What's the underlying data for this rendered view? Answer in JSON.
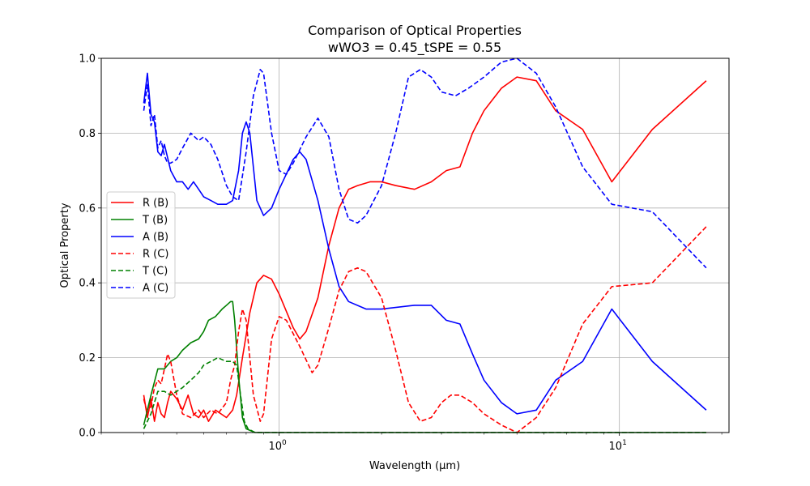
{
  "chart_data": {
    "type": "line",
    "title": "Comparison of Optical Properties",
    "subtitle": "wWO3 = 0.45_tSPE = 0.55",
    "xlabel": "Wavelength (μm)",
    "ylabel": "Optical Property",
    "xscale": "log",
    "xlim": [
      0.3,
      21
    ],
    "ylim": [
      0,
      1
    ],
    "grid": true,
    "legend_position": "center-left",
    "x_tick_labels": [
      "10^0",
      "10^1"
    ],
    "y_tick_labels": [
      "0.0",
      "0.2",
      "0.4",
      "0.6",
      "0.8",
      "1.0"
    ],
    "series": [
      {
        "name": "R (B)",
        "color": "#ff0000",
        "dash": "solid",
        "points": [
          [
            0.4,
            0.1
          ],
          [
            0.41,
            0.04
          ],
          [
            0.42,
            0.09
          ],
          [
            0.43,
            0.03
          ],
          [
            0.44,
            0.08
          ],
          [
            0.45,
            0.05
          ],
          [
            0.46,
            0.04
          ],
          [
            0.47,
            0.08
          ],
          [
            0.48,
            0.11
          ],
          [
            0.5,
            0.09
          ],
          [
            0.52,
            0.06
          ],
          [
            0.54,
            0.1
          ],
          [
            0.56,
            0.05
          ],
          [
            0.58,
            0.04
          ],
          [
            0.6,
            0.06
          ],
          [
            0.62,
            0.03
          ],
          [
            0.65,
            0.06
          ],
          [
            0.7,
            0.04
          ],
          [
            0.73,
            0.06
          ],
          [
            0.75,
            0.1
          ],
          [
            0.78,
            0.2
          ],
          [
            0.82,
            0.32
          ],
          [
            0.86,
            0.4
          ],
          [
            0.9,
            0.42
          ],
          [
            0.95,
            0.41
          ],
          [
            1.0,
            0.37
          ],
          [
            1.1,
            0.28
          ],
          [
            1.15,
            0.25
          ],
          [
            1.2,
            0.27
          ],
          [
            1.3,
            0.36
          ],
          [
            1.4,
            0.5
          ],
          [
            1.5,
            0.6
          ],
          [
            1.6,
            0.65
          ],
          [
            1.7,
            0.66
          ],
          [
            1.85,
            0.67
          ],
          [
            2.0,
            0.67
          ],
          [
            2.2,
            0.66
          ],
          [
            2.5,
            0.65
          ],
          [
            2.8,
            0.67
          ],
          [
            3.1,
            0.7
          ],
          [
            3.4,
            0.71
          ],
          [
            3.7,
            0.8
          ],
          [
            4.0,
            0.86
          ],
          [
            4.5,
            0.92
          ],
          [
            5.0,
            0.95
          ],
          [
            5.7,
            0.94
          ],
          [
            6.5,
            0.86
          ],
          [
            7.8,
            0.81
          ],
          [
            9.5,
            0.67
          ],
          [
            12.5,
            0.81
          ],
          [
            18.0,
            0.94
          ]
        ]
      },
      {
        "name": "T (B)",
        "color": "#008000",
        "dash": "solid",
        "points": [
          [
            0.4,
            0.02
          ],
          [
            0.42,
            0.1
          ],
          [
            0.44,
            0.17
          ],
          [
            0.46,
            0.17
          ],
          [
            0.48,
            0.19
          ],
          [
            0.5,
            0.2
          ],
          [
            0.52,
            0.22
          ],
          [
            0.55,
            0.24
          ],
          [
            0.58,
            0.25
          ],
          [
            0.6,
            0.27
          ],
          [
            0.62,
            0.3
          ],
          [
            0.65,
            0.31
          ],
          [
            0.68,
            0.33
          ],
          [
            0.7,
            0.34
          ],
          [
            0.72,
            0.35
          ],
          [
            0.73,
            0.35
          ],
          [
            0.74,
            0.3
          ],
          [
            0.76,
            0.15
          ],
          [
            0.78,
            0.04
          ],
          [
            0.8,
            0.01
          ],
          [
            0.85,
            0.0
          ],
          [
            1.0,
            0.0
          ],
          [
            2.0,
            0.0
          ],
          [
            5.0,
            0.0
          ],
          [
            18.0,
            0.0
          ]
        ]
      },
      {
        "name": "A (B)",
        "color": "#0000ff",
        "dash": "solid",
        "points": [
          [
            0.4,
            0.88
          ],
          [
            0.41,
            0.96
          ],
          [
            0.42,
            0.85
          ],
          [
            0.43,
            0.83
          ],
          [
            0.44,
            0.75
          ],
          [
            0.45,
            0.74
          ],
          [
            0.46,
            0.77
          ],
          [
            0.48,
            0.7
          ],
          [
            0.5,
            0.67
          ],
          [
            0.52,
            0.67
          ],
          [
            0.54,
            0.65
          ],
          [
            0.56,
            0.67
          ],
          [
            0.58,
            0.65
          ],
          [
            0.6,
            0.63
          ],
          [
            0.63,
            0.62
          ],
          [
            0.66,
            0.61
          ],
          [
            0.7,
            0.61
          ],
          [
            0.73,
            0.62
          ],
          [
            0.76,
            0.7
          ],
          [
            0.78,
            0.8
          ],
          [
            0.8,
            0.83
          ],
          [
            0.82,
            0.8
          ],
          [
            0.86,
            0.62
          ],
          [
            0.9,
            0.58
          ],
          [
            0.95,
            0.6
          ],
          [
            1.0,
            0.65
          ],
          [
            1.1,
            0.73
          ],
          [
            1.15,
            0.75
          ],
          [
            1.2,
            0.73
          ],
          [
            1.3,
            0.62
          ],
          [
            1.4,
            0.49
          ],
          [
            1.5,
            0.39
          ],
          [
            1.6,
            0.35
          ],
          [
            1.8,
            0.33
          ],
          [
            2.0,
            0.33
          ],
          [
            2.5,
            0.34
          ],
          [
            2.8,
            0.34
          ],
          [
            3.1,
            0.3
          ],
          [
            3.4,
            0.29
          ],
          [
            3.7,
            0.21
          ],
          [
            4.0,
            0.14
          ],
          [
            4.5,
            0.08
          ],
          [
            5.0,
            0.05
          ],
          [
            5.7,
            0.06
          ],
          [
            6.5,
            0.14
          ],
          [
            7.8,
            0.19
          ],
          [
            9.5,
            0.33
          ],
          [
            12.5,
            0.19
          ],
          [
            18.0,
            0.06
          ]
        ]
      },
      {
        "name": "R (C)",
        "color": "#ff0000",
        "dash": "dashed",
        "points": [
          [
            0.4,
            0.09
          ],
          [
            0.41,
            0.05
          ],
          [
            0.42,
            0.07
          ],
          [
            0.43,
            0.12
          ],
          [
            0.44,
            0.14
          ],
          [
            0.45,
            0.13
          ],
          [
            0.46,
            0.17
          ],
          [
            0.47,
            0.21
          ],
          [
            0.48,
            0.19
          ],
          [
            0.5,
            0.1
          ],
          [
            0.52,
            0.05
          ],
          [
            0.55,
            0.04
          ],
          [
            0.58,
            0.06
          ],
          [
            0.6,
            0.04
          ],
          [
            0.63,
            0.06
          ],
          [
            0.66,
            0.05
          ],
          [
            0.7,
            0.08
          ],
          [
            0.72,
            0.14
          ],
          [
            0.74,
            0.18
          ],
          [
            0.76,
            0.27
          ],
          [
            0.78,
            0.33
          ],
          [
            0.8,
            0.3
          ],
          [
            0.84,
            0.1
          ],
          [
            0.88,
            0.03
          ],
          [
            0.9,
            0.05
          ],
          [
            0.95,
            0.25
          ],
          [
            1.0,
            0.31
          ],
          [
            1.05,
            0.3
          ],
          [
            1.15,
            0.23
          ],
          [
            1.25,
            0.16
          ],
          [
            1.3,
            0.18
          ],
          [
            1.4,
            0.28
          ],
          [
            1.5,
            0.38
          ],
          [
            1.6,
            0.43
          ],
          [
            1.7,
            0.44
          ],
          [
            1.8,
            0.43
          ],
          [
            2.0,
            0.36
          ],
          [
            2.2,
            0.22
          ],
          [
            2.4,
            0.08
          ],
          [
            2.6,
            0.03
          ],
          [
            2.8,
            0.04
          ],
          [
            3.0,
            0.08
          ],
          [
            3.2,
            0.1
          ],
          [
            3.4,
            0.1
          ],
          [
            3.7,
            0.08
          ],
          [
            4.0,
            0.05
          ],
          [
            4.5,
            0.02
          ],
          [
            5.0,
            0.0
          ],
          [
            5.7,
            0.04
          ],
          [
            6.5,
            0.12
          ],
          [
            7.8,
            0.29
          ],
          [
            9.5,
            0.39
          ],
          [
            12.5,
            0.4
          ],
          [
            18.0,
            0.55
          ]
        ]
      },
      {
        "name": "T (C)",
        "color": "#008000",
        "dash": "dashed",
        "points": [
          [
            0.4,
            0.01
          ],
          [
            0.42,
            0.05
          ],
          [
            0.44,
            0.11
          ],
          [
            0.46,
            0.11
          ],
          [
            0.48,
            0.1
          ],
          [
            0.5,
            0.11
          ],
          [
            0.52,
            0.12
          ],
          [
            0.55,
            0.14
          ],
          [
            0.58,
            0.16
          ],
          [
            0.6,
            0.18
          ],
          [
            0.63,
            0.19
          ],
          [
            0.66,
            0.2
          ],
          [
            0.7,
            0.19
          ],
          [
            0.73,
            0.19
          ],
          [
            0.75,
            0.18
          ],
          [
            0.77,
            0.1
          ],
          [
            0.79,
            0.03
          ],
          [
            0.81,
            0.01
          ],
          [
            0.85,
            0.0
          ],
          [
            1.0,
            0.0
          ],
          [
            2.0,
            0.0
          ],
          [
            5.0,
            0.0
          ],
          [
            18.0,
            0.0
          ]
        ]
      },
      {
        "name": "A (C)",
        "color": "#0000ff",
        "dash": "dashed",
        "points": [
          [
            0.4,
            0.86
          ],
          [
            0.41,
            0.93
          ],
          [
            0.42,
            0.82
          ],
          [
            0.43,
            0.85
          ],
          [
            0.44,
            0.76
          ],
          [
            0.45,
            0.78
          ],
          [
            0.46,
            0.74
          ],
          [
            0.47,
            0.72
          ],
          [
            0.48,
            0.72
          ],
          [
            0.5,
            0.73
          ],
          [
            0.52,
            0.76
          ],
          [
            0.55,
            0.8
          ],
          [
            0.58,
            0.78
          ],
          [
            0.6,
            0.79
          ],
          [
            0.63,
            0.77
          ],
          [
            0.66,
            0.73
          ],
          [
            0.7,
            0.66
          ],
          [
            0.73,
            0.63
          ],
          [
            0.76,
            0.62
          ],
          [
            0.8,
            0.75
          ],
          [
            0.84,
            0.9
          ],
          [
            0.88,
            0.97
          ],
          [
            0.9,
            0.96
          ],
          [
            0.95,
            0.8
          ],
          [
            1.0,
            0.7
          ],
          [
            1.05,
            0.69
          ],
          [
            1.1,
            0.72
          ],
          [
            1.2,
            0.79
          ],
          [
            1.3,
            0.84
          ],
          [
            1.4,
            0.79
          ],
          [
            1.5,
            0.65
          ],
          [
            1.6,
            0.57
          ],
          [
            1.7,
            0.56
          ],
          [
            1.8,
            0.58
          ],
          [
            2.0,
            0.66
          ],
          [
            2.2,
            0.8
          ],
          [
            2.4,
            0.95
          ],
          [
            2.6,
            0.97
          ],
          [
            2.8,
            0.95
          ],
          [
            3.0,
            0.91
          ],
          [
            3.3,
            0.9
          ],
          [
            3.6,
            0.92
          ],
          [
            4.0,
            0.95
          ],
          [
            4.5,
            0.99
          ],
          [
            5.0,
            1.0
          ],
          [
            5.7,
            0.96
          ],
          [
            6.5,
            0.87
          ],
          [
            7.8,
            0.71
          ],
          [
            9.5,
            0.61
          ],
          [
            12.5,
            0.59
          ],
          [
            18.0,
            0.44
          ]
        ]
      }
    ]
  }
}
